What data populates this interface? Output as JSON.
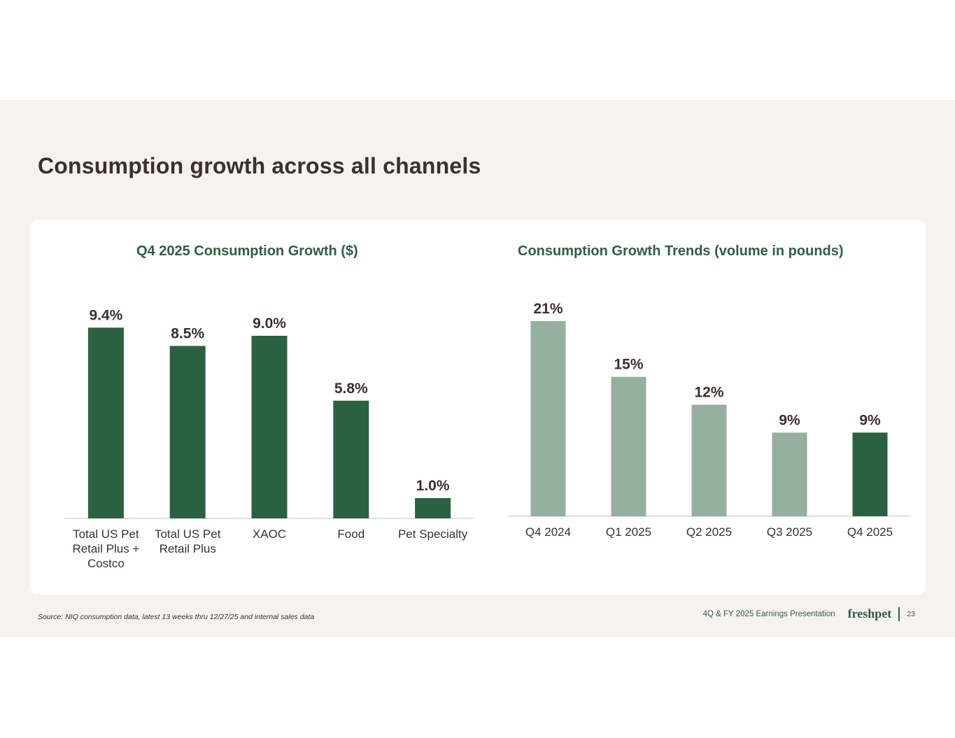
{
  "slide": {
    "title": "Consumption growth across all channels",
    "source": "Source:  NIQ consumption data, latest 13 weeks thru 12/27/25 and internal sales data",
    "presentation": "4Q & FY 2025 Earnings Presentation",
    "logo": "freshpet",
    "page_number": "23"
  },
  "colors": {
    "dark_green": "#2a6241",
    "light_green": "#96b09f",
    "title_green": "#2f5e44",
    "text": "#3b302c",
    "axis": "#bfbfbf"
  },
  "chart_data": [
    {
      "type": "bar",
      "title": "Q4 2025 Consumption Growth ($)",
      "categories": [
        [
          "Total US Pet",
          "Retail Plus +",
          "Costco"
        ],
        [
          "Total US Pet",
          "Retail Plus"
        ],
        [
          "XAOC"
        ],
        [
          "Food"
        ],
        [
          "Pet Specialty"
        ]
      ],
      "values": [
        9.4,
        8.5,
        9.0,
        5.8,
        1.0
      ],
      "data_labels": [
        "9.4%",
        "8.5%",
        "9.0%",
        "5.8%",
        "1.0%"
      ],
      "bar_colors": [
        "dark",
        "dark",
        "dark",
        "dark",
        "dark"
      ],
      "ylim": [
        0,
        10
      ],
      "xlabel": "",
      "ylabel": ""
    },
    {
      "type": "bar",
      "title": "Consumption Growth Trends (volume in pounds)",
      "categories": [
        [
          "Q4 2024"
        ],
        [
          "Q1 2025"
        ],
        [
          "Q2 2025"
        ],
        [
          "Q3 2025"
        ],
        [
          "Q4 2025"
        ]
      ],
      "values": [
        21,
        15,
        12,
        9,
        9
      ],
      "data_labels": [
        "21%",
        "15%",
        "12%",
        "9%",
        "9%"
      ],
      "bar_colors": [
        "light",
        "light",
        "light",
        "light",
        "dark"
      ],
      "ylim": [
        0,
        22.5
      ],
      "xlabel": "",
      "ylabel": ""
    }
  ]
}
